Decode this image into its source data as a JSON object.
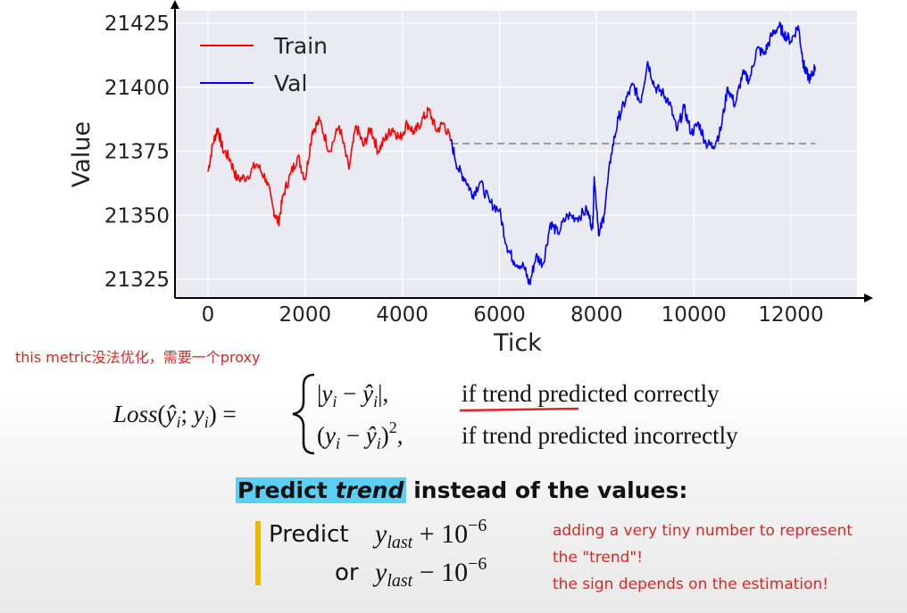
{
  "chart_data": {
    "type": "line",
    "xlabel": "Tick",
    "ylabel": "Value",
    "xlim": [
      0,
      12500
    ],
    "ylim": [
      21322,
      21426
    ],
    "x_ticks": [
      0,
      2000,
      4000,
      6000,
      8000,
      10000,
      12000
    ],
    "y_ticks": [
      21325,
      21350,
      21375,
      21400,
      21425
    ],
    "grid": true,
    "legend_position": "top-left",
    "reference_line": {
      "y": 21378,
      "x_start": 5000,
      "x_end": 12500,
      "style": "dashed"
    },
    "series": [
      {
        "name": "Train",
        "color": "#ff0000",
        "x": [
          0,
          100,
          200,
          300,
          450,
          600,
          800,
          1000,
          1200,
          1350,
          1450,
          1550,
          1700,
          1850,
          2000,
          2150,
          2300,
          2500,
          2700,
          2900,
          3050,
          3200,
          3350,
          3500,
          3650,
          3800,
          3950,
          4100,
          4250,
          4400,
          4550,
          4700,
          4850,
          5000
        ],
        "values": [
          21367,
          21378,
          21384,
          21376,
          21372,
          21364,
          21365,
          21370,
          21364,
          21352,
          21347,
          21358,
          21366,
          21373,
          21364,
          21383,
          21387,
          21375,
          21385,
          21368,
          21385,
          21377,
          21384,
          21375,
          21380,
          21384,
          21380,
          21386,
          21382,
          21387,
          21391,
          21383,
          21386,
          21379
        ]
      },
      {
        "name": "Val",
        "color": "#0000ff",
        "x": [
          5000,
          5150,
          5300,
          5450,
          5600,
          5800,
          6000,
          6150,
          6300,
          6500,
          6620,
          6750,
          6900,
          7050,
          7200,
          7400,
          7600,
          7800,
          7920,
          7950,
          8050,
          8150,
          8300,
          8450,
          8600,
          8750,
          8900,
          9050,
          9200,
          9350,
          9500,
          9650,
          9800,
          9950,
          10100,
          10250,
          10400,
          10550,
          10700,
          10850,
          11000,
          11150,
          11300,
          11450,
          11600,
          11750,
          11850,
          12000,
          12150,
          12250,
          12300,
          12400,
          12500
        ],
        "values": [
          21379,
          21368,
          21364,
          21358,
          21363,
          21355,
          21352,
          21338,
          21332,
          21330,
          21323,
          21334,
          21331,
          21347,
          21343,
          21350,
          21349,
          21352,
          21345,
          21365,
          21342,
          21350,
          21374,
          21388,
          21395,
          21401,
          21394,
          21410,
          21400,
          21398,
          21394,
          21383,
          21392,
          21382,
          21386,
          21378,
          21377,
          21383,
          21400,
          21393,
          21405,
          21403,
          21415,
          21413,
          21420,
          21424,
          21421,
          21418,
          21424,
          21410,
          21406,
          21403,
          21408
        ]
      }
    ]
  },
  "annotations": {
    "top_note": "this metric没法优化，需要一个proxy",
    "side_note_line1": "adding a very tiny number to represent",
    "side_note_line2": "the \"trend\"!",
    "side_note_line3": "the sign depends on the estimation!"
  },
  "formula": {
    "lhs_func": "Loss",
    "case1_text": "if trend predicted correctly",
    "case2_text": "if trend predicted incorrectly"
  },
  "banner": {
    "word1": "Predict",
    "word2": "trend",
    "rest": "instead of the values:"
  },
  "predict": {
    "label1": "Predict",
    "label2": "or",
    "var": "last",
    "base": "10",
    "exp": "−6"
  }
}
